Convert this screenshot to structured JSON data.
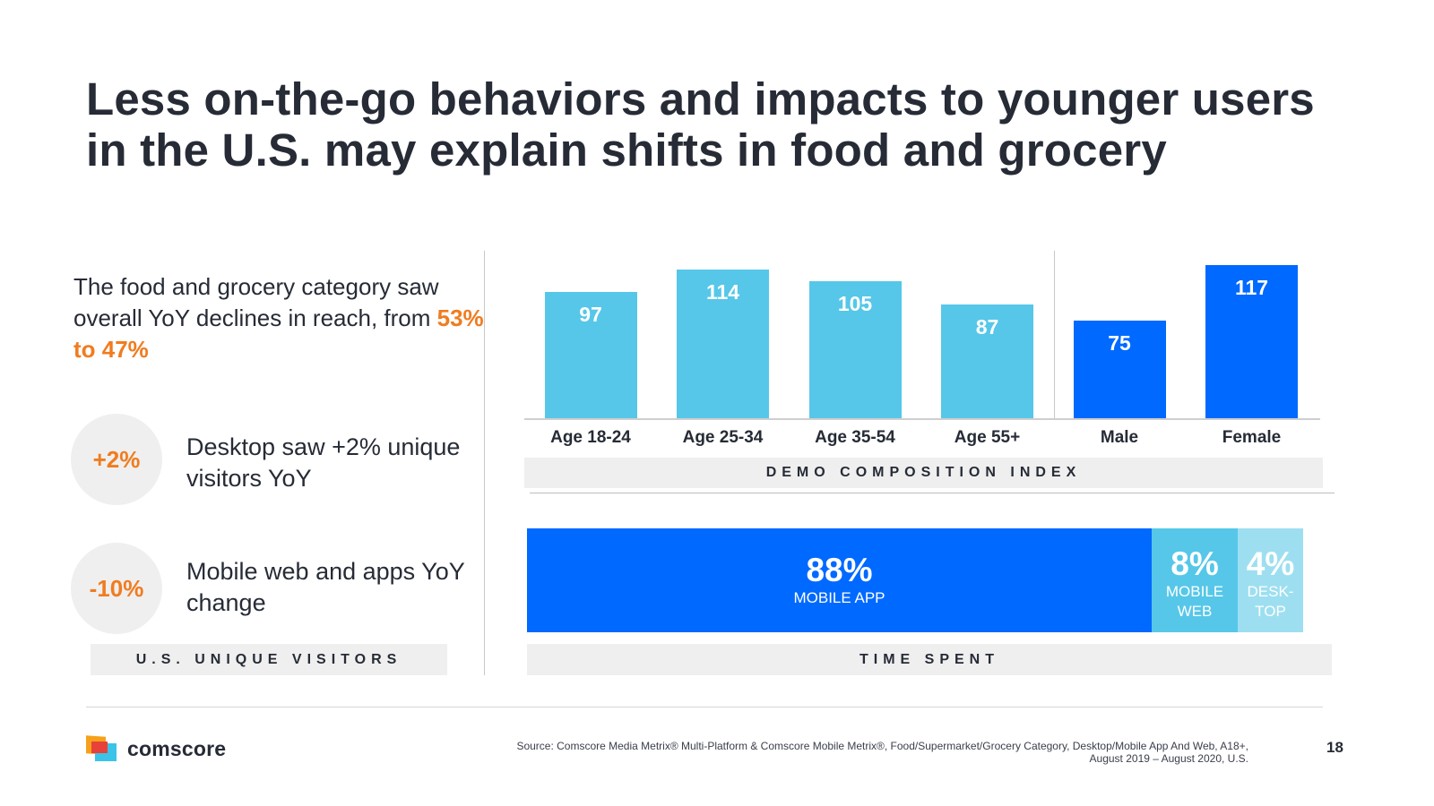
{
  "title": {
    "line1": "Less on-the-go behaviors and impacts to younger users",
    "line2": "in the U.S. may explain shifts in food and grocery"
  },
  "left_panel": {
    "intro_text": "The food and grocery category saw overall YoY declines in reach, from ",
    "intro_highlight": "53% to 47%",
    "stats": [
      {
        "badge": "+2%",
        "text": "Desktop saw +2% unique visitors YoY"
      },
      {
        "badge": "-10%",
        "text": "Mobile web and apps YoY change"
      }
    ],
    "caption": "U.S. UNIQUE VISITORS"
  },
  "colors": {
    "accent_orange": "#f07c1f",
    "age_bar": "#56c7e8",
    "gender_bar": "#0069ff",
    "mobile_app": "#0069ff",
    "mobile_web": "#56c7e8",
    "desktop": "#9ddff0",
    "text_dark": "#262b36",
    "caption_bg": "#efefef"
  },
  "chart_data": [
    {
      "type": "bar",
      "title": "DEMO COMPOSITION INDEX",
      "categories": [
        "Age 18-24",
        "Age 25-34",
        "Age 35-54",
        "Age 55+",
        "Male",
        "Female"
      ],
      "values": [
        97,
        114,
        105,
        87,
        75,
        117
      ],
      "groups": [
        "age",
        "age",
        "age",
        "age",
        "gender",
        "gender"
      ],
      "xlabel": "",
      "ylabel": "",
      "ylim": [
        0,
        120
      ],
      "grid": false,
      "data_labels": true
    },
    {
      "type": "bar",
      "orientation": "stacked-horizontal",
      "title": "TIME SPENT",
      "segments": [
        {
          "label_line1": "MOBILE APP",
          "label_line2": "",
          "value": 88,
          "display": "88%"
        },
        {
          "label_line1": "MOBILE",
          "label_line2": "WEB",
          "value": 8,
          "display": "8%"
        },
        {
          "label_line1": "DESK-",
          "label_line2": "TOP",
          "value": 4,
          "display": "4%"
        }
      ],
      "units": "percent"
    }
  ],
  "footer": {
    "logo_text": "comscore",
    "source_line1": "Source: Comscore Media Metrix® Multi-Platform & Comscore Mobile Metrix®, Food/Supermarket/Grocery Category, Desktop/Mobile App And Web, A18+,",
    "source_line2": "August 2019 – August 2020, U.S.",
    "page_number": "18"
  }
}
